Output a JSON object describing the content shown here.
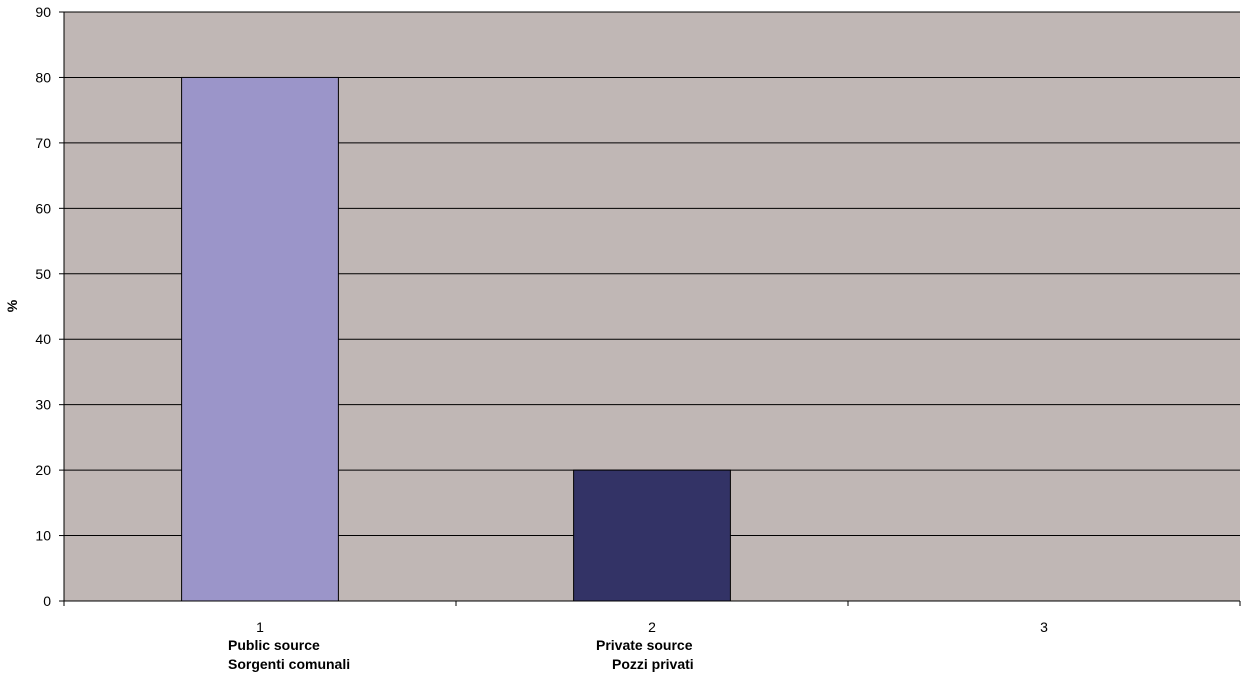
{
  "chart_data": {
    "type": "bar",
    "categories": [
      "1",
      "2",
      "3"
    ],
    "values": [
      80,
      20,
      0
    ],
    "bar_colors": [
      "#9b95c9",
      "#333366",
      "#9b95c9"
    ],
    "category_notes": [
      {
        "line1": "Public source",
        "line2": "Sorgenti comunali"
      },
      {
        "line1": "Private source",
        "line2": "Pozzi privati"
      },
      {
        "line1": "",
        "line2": ""
      }
    ],
    "title": "",
    "xlabel": "",
    "ylabel": "%",
    "ylim": [
      0,
      90
    ],
    "yticks": [
      0,
      10,
      20,
      30,
      40,
      50,
      60,
      70,
      80,
      90
    ],
    "grid": true,
    "legend": "none",
    "plot_background": "#c0b7b5",
    "gridline_color": "#000000"
  }
}
